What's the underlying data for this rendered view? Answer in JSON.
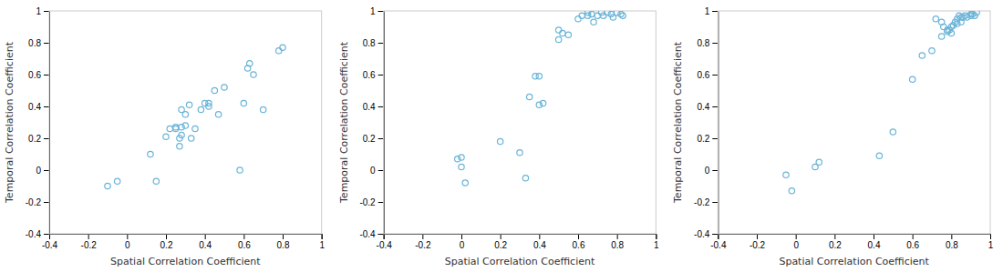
{
  "chart_data": [
    {
      "type": "scatter",
      "x": [
        -0.1,
        -0.05,
        0.12,
        0.15,
        0.2,
        0.22,
        0.25,
        0.25,
        0.27,
        0.27,
        0.28,
        0.28,
        0.28,
        0.3,
        0.3,
        0.32,
        0.33,
        0.35,
        0.38,
        0.4,
        0.42,
        0.42,
        0.45,
        0.47,
        0.5,
        0.58,
        0.6,
        0.62,
        0.63,
        0.65,
        0.7,
        0.78,
        0.8
      ],
      "values": [
        -0.1,
        -0.07,
        0.1,
        -0.07,
        0.21,
        0.26,
        0.26,
        0.27,
        0.15,
        0.2,
        0.22,
        0.27,
        0.38,
        0.28,
        0.35,
        0.41,
        0.2,
        0.26,
        0.38,
        0.42,
        0.4,
        0.42,
        0.5,
        0.35,
        0.52,
        0.0,
        0.42,
        0.64,
        0.67,
        0.6,
        0.38,
        0.75,
        0.77
      ],
      "color": "#6ab4d8",
      "xlabel": "Spatial Correlation Coefficient",
      "ylabel": "Temporal Correlation Coefficient",
      "xlim": [
        -0.4,
        1
      ],
      "ylim": [
        -0.4,
        1
      ],
      "xticks": [
        -0.4,
        -0.2,
        0,
        0.2,
        0.4,
        0.6,
        0.8,
        1
      ],
      "yticks": [
        -0.4,
        -0.2,
        0,
        0.2,
        0.4,
        0.6,
        0.8,
        1
      ],
      "grid": false
    },
    {
      "type": "scatter",
      "x": [
        -0.02,
        0.0,
        0.0,
        0.02,
        0.2,
        0.3,
        0.33,
        0.35,
        0.38,
        0.4,
        0.4,
        0.42,
        0.5,
        0.5,
        0.52,
        0.55,
        0.6,
        0.62,
        0.65,
        0.65,
        0.67,
        0.68,
        0.7,
        0.72,
        0.73,
        0.75,
        0.77,
        0.78,
        0.8,
        0.82,
        0.83
      ],
      "values": [
        0.07,
        0.08,
        0.02,
        -0.08,
        0.18,
        0.11,
        -0.05,
        0.46,
        0.59,
        0.59,
        0.41,
        0.42,
        0.82,
        0.88,
        0.86,
        0.85,
        0.95,
        0.97,
        0.97,
        0.99,
        0.98,
        0.93,
        0.97,
        0.99,
        0.97,
        0.99,
        0.98,
        0.96,
        0.99,
        0.98,
        0.97
      ],
      "color": "#6ab4d8",
      "xlabel": "Spatial Correlation Coefficient",
      "ylabel": "Temporal Correlation Coefficient",
      "xlim": [
        -0.4,
        1
      ],
      "ylim": [
        -0.4,
        1
      ],
      "xticks": [
        -0.4,
        -0.2,
        0,
        0.2,
        0.4,
        0.6,
        0.8,
        1
      ],
      "yticks": [
        -0.4,
        -0.2,
        0,
        0.2,
        0.4,
        0.6,
        0.8,
        1
      ],
      "grid": false
    },
    {
      "type": "scatter",
      "x": [
        -0.05,
        -0.02,
        0.1,
        0.12,
        0.43,
        0.5,
        0.6,
        0.65,
        0.7,
        0.72,
        0.75,
        0.75,
        0.76,
        0.78,
        0.78,
        0.79,
        0.8,
        0.8,
        0.81,
        0.82,
        0.83,
        0.83,
        0.84,
        0.85,
        0.85,
        0.86,
        0.87,
        0.88,
        0.9,
        0.9,
        0.91,
        0.92,
        0.93
      ],
      "values": [
        -0.03,
        -0.13,
        0.02,
        0.05,
        0.09,
        0.24,
        0.57,
        0.72,
        0.75,
        0.95,
        0.84,
        0.93,
        0.9,
        0.87,
        0.88,
        0.88,
        0.86,
        0.9,
        0.91,
        0.93,
        0.92,
        0.95,
        0.97,
        0.93,
        0.96,
        0.96,
        0.97,
        0.96,
        0.97,
        0.98,
        0.98,
        0.97,
        0.99
      ],
      "color": "#6ab4d8",
      "xlabel": "Spatial Correlation Coefficient",
      "ylabel": "Temporal Correlation Coefficient",
      "xlim": [
        -0.4,
        1
      ],
      "ylim": [
        -0.4,
        1
      ],
      "xticks": [
        -0.4,
        -0.2,
        0,
        0.2,
        0.4,
        0.6,
        0.8,
        1
      ],
      "yticks": [
        -0.4,
        -0.2,
        0,
        0.2,
        0.4,
        0.6,
        0.8,
        1
      ],
      "grid": false
    }
  ]
}
